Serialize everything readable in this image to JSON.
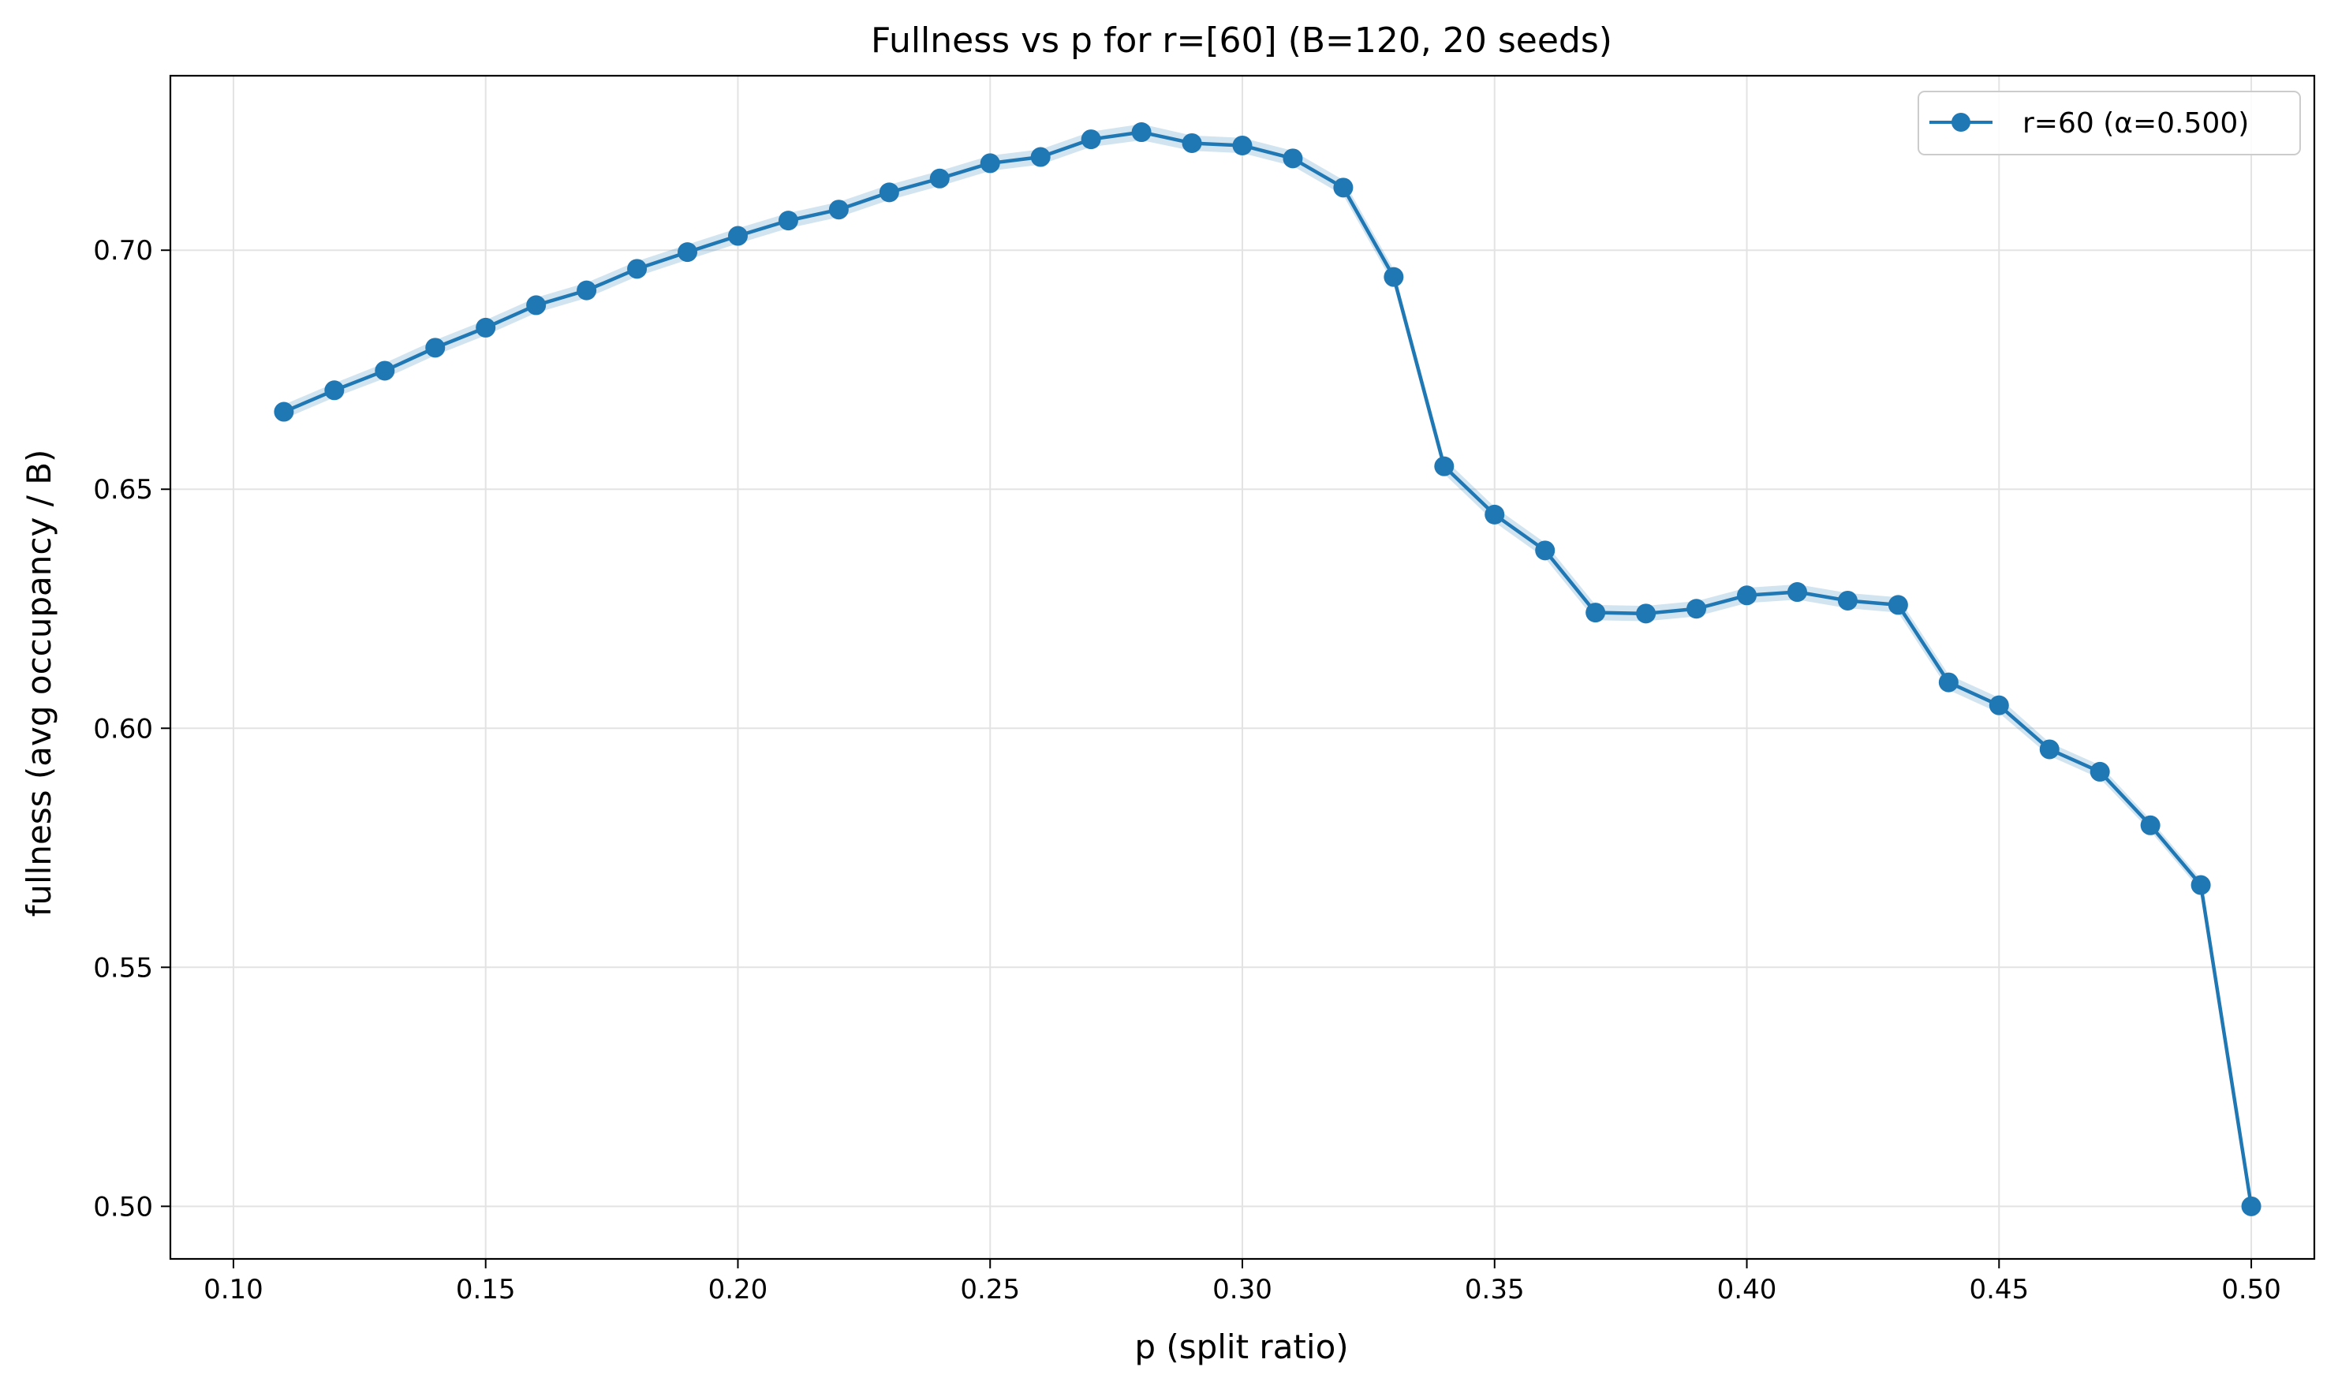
{
  "chart_data": {
    "type": "line",
    "title": "Fullness vs p for r=[60] (B=120, 20 seeds)",
    "xlabel": "p (split ratio)",
    "ylabel": "fullness (avg occupancy / B)",
    "xlim": [
      0.0875,
      0.5125
    ],
    "ylim": [
      0.489,
      0.7365
    ],
    "x_ticks": [
      0.1,
      0.15,
      0.2,
      0.25,
      0.3,
      0.35,
      0.4,
      0.45,
      0.5
    ],
    "x_tick_labels": [
      "0.10",
      "0.15",
      "0.20",
      "0.25",
      "0.30",
      "0.35",
      "0.40",
      "0.45",
      "0.50"
    ],
    "y_ticks": [
      0.5,
      0.55,
      0.6,
      0.65,
      0.7
    ],
    "y_tick_labels": [
      "0.50",
      "0.55",
      "0.60",
      "0.65",
      "0.70"
    ],
    "grid": true,
    "legend_position": "top-right",
    "x": [
      0.11,
      0.12,
      0.13,
      0.14,
      0.15,
      0.16,
      0.17,
      0.18,
      0.19,
      0.2,
      0.21,
      0.22,
      0.23,
      0.24,
      0.25,
      0.26,
      0.27,
      0.28,
      0.29,
      0.3,
      0.31,
      0.32,
      0.33,
      0.34,
      0.35,
      0.36,
      0.37,
      0.38,
      0.39,
      0.4,
      0.41,
      0.42,
      0.43,
      0.44,
      0.45,
      0.46,
      0.47,
      0.48,
      0.49,
      0.5
    ],
    "series": [
      {
        "name": "r=60 (α=0.500)",
        "color": "#1f77b4",
        "band_color": "#1f77b4",
        "values": [
          0.6662,
          0.6707,
          0.6748,
          0.6796,
          0.6838,
          0.6885,
          0.6916,
          0.6961,
          0.6996,
          0.703,
          0.7062,
          0.7085,
          0.7121,
          0.715,
          0.7182,
          0.7195,
          0.7232,
          0.7247,
          0.7224,
          0.7219,
          0.7192,
          0.7131,
          0.6944,
          0.6548,
          0.6447,
          0.6372,
          0.6242,
          0.624,
          0.625,
          0.6278,
          0.6285,
          0.6267,
          0.6258,
          0.6096,
          0.6048,
          0.5956,
          0.5909,
          0.5797,
          0.5672,
          0.5
        ],
        "band_lower": [
          0.6647,
          0.6692,
          0.6732,
          0.678,
          0.6822,
          0.6869,
          0.69,
          0.6945,
          0.698,
          0.7014,
          0.7046,
          0.7069,
          0.7105,
          0.7134,
          0.7166,
          0.7179,
          0.7216,
          0.723,
          0.7208,
          0.7203,
          0.7176,
          0.7115,
          0.6928,
          0.6532,
          0.6431,
          0.6356,
          0.6226,
          0.6224,
          0.6234,
          0.6262,
          0.6269,
          0.6251,
          0.6242,
          0.608,
          0.6032,
          0.5942,
          0.5895,
          0.5785,
          0.566,
          0.4998
        ],
        "band_upper": [
          0.6677,
          0.6722,
          0.6764,
          0.6812,
          0.6854,
          0.6901,
          0.6932,
          0.6977,
          0.7012,
          0.7046,
          0.7078,
          0.7101,
          0.7137,
          0.7166,
          0.7198,
          0.7211,
          0.7248,
          0.7264,
          0.724,
          0.7235,
          0.7208,
          0.7147,
          0.696,
          0.6564,
          0.6463,
          0.6388,
          0.6258,
          0.6256,
          0.6266,
          0.6294,
          0.6301,
          0.6283,
          0.6274,
          0.6112,
          0.6064,
          0.597,
          0.5923,
          0.5809,
          0.5684,
          0.5002
        ]
      }
    ]
  }
}
